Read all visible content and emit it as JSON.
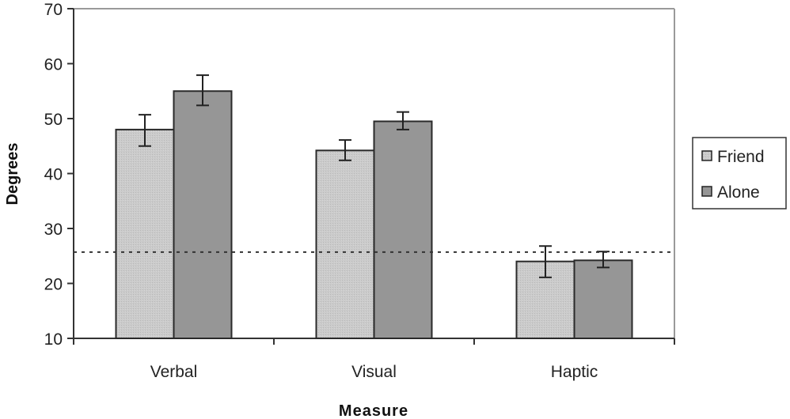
{
  "chart_data": {
    "type": "bar",
    "title": "",
    "xlabel": "Measure",
    "ylabel": "Degrees",
    "ylim": [
      10,
      70
    ],
    "yticks": [
      10,
      20,
      30,
      40,
      50,
      60,
      70
    ],
    "categories": [
      "Verbal",
      "Visual",
      "Haptic"
    ],
    "series": [
      {
        "name": "Friend",
        "color": "#c8c8c8",
        "values": [
          48,
          44.2,
          24
        ],
        "error_upper": [
          50.7,
          46.1,
          26.8
        ],
        "error_lower": [
          45.0,
          42.4,
          21.1
        ]
      },
      {
        "name": "Alone",
        "color": "#969696",
        "values": [
          55,
          49.5,
          24.2
        ],
        "error_upper": [
          57.9,
          51.2,
          25.8
        ],
        "error_lower": [
          52.4,
          48.0,
          22.9
        ]
      }
    ],
    "reference_line": {
      "value": 25.7,
      "style": "dashed",
      "gradient_colors": [
        "#8a4df5",
        "#c060b0",
        "#e07a70",
        "#ff8c3c"
      ]
    },
    "legend": {
      "position": "right",
      "entries": [
        "Friend",
        "Alone"
      ]
    },
    "grid": false
  }
}
